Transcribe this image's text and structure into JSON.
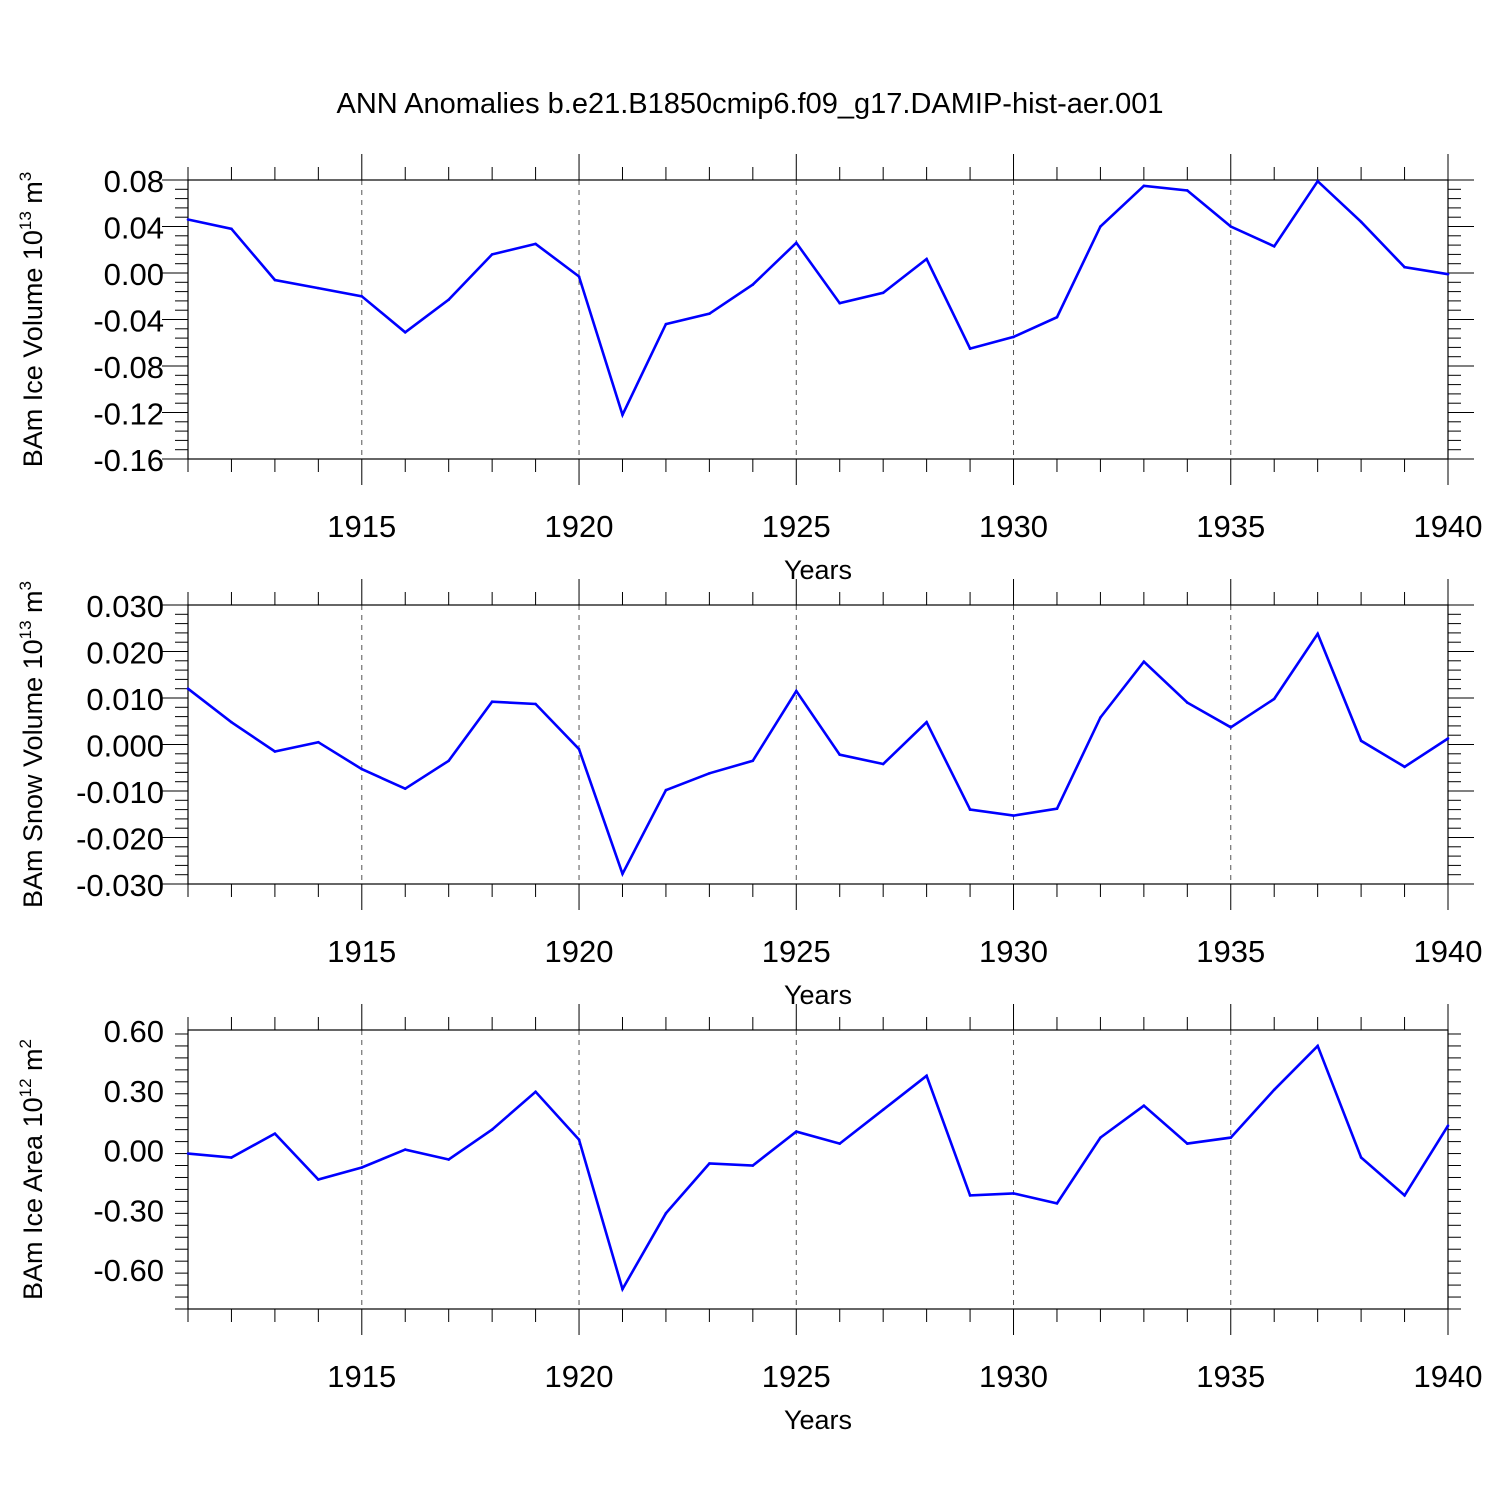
{
  "title": "ANN Anomalies b.e21.B1850cmip6.f09_g17.DAMIP-hist-aer.001",
  "line_color": "#0000ff",
  "chart_data": [
    {
      "type": "line",
      "ylabel_main": "BAm Ice Volume 10",
      "ylabel_exp": "13",
      "ylabel_unit": " m",
      "ylabel_unit_exp": "3",
      "xlabel": "Years",
      "xlim": [
        1911,
        1940
      ],
      "ylim": [
        -0.16,
        0.08
      ],
      "yticks": [
        -0.16,
        -0.12,
        -0.08,
        -0.04,
        0.0,
        0.04,
        0.08
      ],
      "ytick_labels": [
        "-0.16",
        "-0.12",
        "-0.08",
        "-0.04",
        "0.00",
        "0.04",
        "0.08"
      ],
      "xticks": [
        1915,
        1920,
        1925,
        1930,
        1935,
        1940
      ],
      "xtick_labels": [
        "1915",
        "1920",
        "1925",
        "1930",
        "1935",
        "1940"
      ],
      "grid": "vertical dashed at major x ticks",
      "x": [
        1911,
        1912,
        1913,
        1914,
        1915,
        1916,
        1917,
        1918,
        1919,
        1920,
        1921,
        1922,
        1923,
        1924,
        1925,
        1926,
        1927,
        1928,
        1929,
        1930,
        1931,
        1932,
        1933,
        1934,
        1935,
        1936,
        1937,
        1938,
        1939,
        1940
      ],
      "y": [
        0.046,
        0.038,
        -0.006,
        -0.013,
        -0.02,
        -0.051,
        -0.023,
        0.016,
        0.025,
        -0.003,
        -0.122,
        -0.044,
        -0.035,
        -0.01,
        0.026,
        -0.026,
        -0.017,
        0.012,
        -0.065,
        -0.055,
        -0.038,
        0.04,
        0.075,
        0.071,
        0.04,
        0.023,
        0.079,
        0.044,
        0.005,
        -0.001
      ]
    },
    {
      "type": "line",
      "ylabel_main": "BAm Snow Volume 10",
      "ylabel_exp": "13",
      "ylabel_unit": " m",
      "ylabel_unit_exp": "3",
      "xlabel": "Years",
      "xlim": [
        1911,
        1940
      ],
      "ylim": [
        -0.03,
        0.03
      ],
      "yticks": [
        -0.03,
        -0.02,
        -0.01,
        0.0,
        0.01,
        0.02,
        0.03
      ],
      "ytick_labels": [
        "-0.030",
        "-0.020",
        "-0.010",
        "0.000",
        "0.010",
        "0.020",
        "0.030"
      ],
      "xticks": [
        1915,
        1920,
        1925,
        1930,
        1935,
        1940
      ],
      "xtick_labels": [
        "1915",
        "1920",
        "1925",
        "1930",
        "1935",
        "1940"
      ],
      "grid": "vertical dashed at major x ticks",
      "x": [
        1911,
        1912,
        1913,
        1914,
        1915,
        1916,
        1917,
        1918,
        1919,
        1920,
        1921,
        1922,
        1923,
        1924,
        1925,
        1926,
        1927,
        1928,
        1929,
        1930,
        1931,
        1932,
        1933,
        1934,
        1935,
        1936,
        1937,
        1938,
        1939,
        1940
      ],
      "y": [
        0.012,
        0.0048,
        -0.0015,
        0.0005,
        -0.0053,
        -0.0095,
        -0.0035,
        0.0092,
        0.0087,
        -0.001,
        -0.0278,
        -0.0098,
        -0.0062,
        -0.0035,
        0.0115,
        -0.0022,
        -0.0042,
        0.0048,
        -0.014,
        -0.0153,
        -0.0138,
        0.0058,
        0.0178,
        0.009,
        0.0037,
        0.0098,
        0.0238,
        0.0008,
        -0.0048,
        0.0013
      ]
    },
    {
      "type": "line",
      "ylabel_main": "BAm Ice Area 10",
      "ylabel_exp": "12",
      "ylabel_unit": " m",
      "ylabel_unit_exp": "2",
      "xlabel": "Years",
      "xlim": [
        1911,
        1940
      ],
      "ylim": [
        -0.8,
        0.6
      ],
      "yticks": [
        -0.6,
        -0.3,
        0.0,
        0.3,
        0.6
      ],
      "ytick_labels": [
        "-0.60",
        "-0.30",
        "0.00",
        "0.30",
        "0.60"
      ],
      "xticks": [
        1915,
        1920,
        1925,
        1930,
        1935,
        1940
      ],
      "xtick_labels": [
        "1915",
        "1920",
        "1925",
        "1930",
        "1935",
        "1940"
      ],
      "grid": "vertical dashed at major x ticks",
      "x": [
        1911,
        1912,
        1913,
        1914,
        1915,
        1916,
        1917,
        1918,
        1919,
        1920,
        1921,
        1922,
        1923,
        1924,
        1925,
        1926,
        1927,
        1928,
        1929,
        1930,
        1931,
        1932,
        1933,
        1934,
        1935,
        1936,
        1937,
        1938,
        1939,
        1940
      ],
      "y": [
        -0.02,
        -0.04,
        0.08,
        -0.15,
        -0.09,
        0.0,
        -0.05,
        0.1,
        0.29,
        0.05,
        -0.7,
        -0.32,
        -0.07,
        -0.08,
        0.09,
        0.03,
        0.2,
        0.37,
        -0.23,
        -0.22,
        -0.27,
        0.06,
        0.22,
        0.03,
        0.06,
        0.3,
        0.52,
        -0.04,
        -0.23,
        0.12
      ]
    }
  ]
}
